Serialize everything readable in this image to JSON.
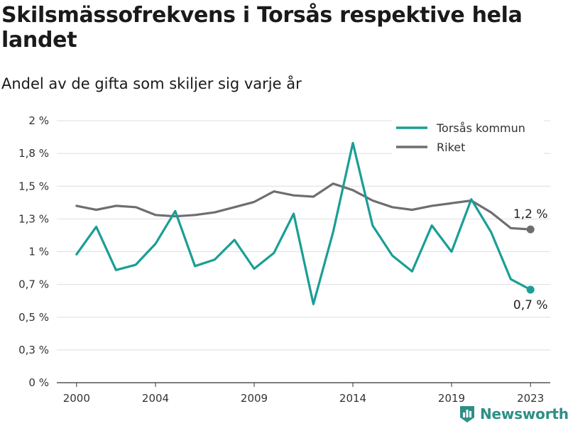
{
  "title": "Skilsmässofrekvens i Torsås respektive hela landet",
  "subtitle": "Andel av de gifta som skiljer sig varje år",
  "brand": {
    "name": "Newsworthy",
    "icon": "newsworthy-logo-icon",
    "color": "#2e8f86"
  },
  "chart_data": {
    "type": "line",
    "x": [
      2000,
      2001,
      2002,
      2003,
      2004,
      2005,
      2006,
      2007,
      2008,
      2009,
      2010,
      2011,
      2012,
      2013,
      2014,
      2015,
      2016,
      2017,
      2018,
      2019,
      2020,
      2021,
      2022,
      2023
    ],
    "xticks": [
      {
        "value": 2000,
        "label": "2000"
      },
      {
        "value": 2004,
        "label": "2004"
      },
      {
        "value": 2009,
        "label": "2009"
      },
      {
        "value": 2014,
        "label": "2014"
      },
      {
        "value": 2019,
        "label": "2019"
      },
      {
        "value": 2023,
        "label": "2023"
      }
    ],
    "yticks": [
      {
        "value": 0,
        "label": "0 %"
      },
      {
        "value": 0.25,
        "label": "0,3 %"
      },
      {
        "value": 0.5,
        "label": "0,5 %"
      },
      {
        "value": 0.75,
        "label": "0,7 %"
      },
      {
        "value": 1.0,
        "label": "1 %"
      },
      {
        "value": 1.25,
        "label": "1,3 %"
      },
      {
        "value": 1.5,
        "label": "1,5 %"
      },
      {
        "value": 1.75,
        "label": "1,8 %"
      },
      {
        "value": 2.0,
        "label": "2 %"
      }
    ],
    "ylim": [
      0,
      2
    ],
    "xlim": [
      1999,
      2024
    ],
    "grid": true,
    "legend_position": "top-right",
    "series": [
      {
        "name": "Torsås kommun",
        "color": "#1a9e95",
        "values": [
          0.98,
          1.19,
          0.86,
          0.9,
          1.06,
          1.31,
          0.89,
          0.94,
          1.09,
          0.87,
          0.99,
          1.29,
          0.6,
          1.15,
          1.83,
          1.2,
          0.97,
          0.85,
          1.2,
          1.0,
          1.4,
          1.15,
          0.79,
          0.71
        ],
        "end_label": "0,7 %"
      },
      {
        "name": "Riket",
        "color": "#6e6e72",
        "values": [
          1.35,
          1.32,
          1.35,
          1.34,
          1.28,
          1.27,
          1.28,
          1.3,
          1.34,
          1.38,
          1.46,
          1.43,
          1.42,
          1.52,
          1.47,
          1.39,
          1.34,
          1.32,
          1.35,
          1.37,
          1.39,
          1.3,
          1.18,
          1.17
        ],
        "end_label": "1,2 %"
      }
    ]
  }
}
